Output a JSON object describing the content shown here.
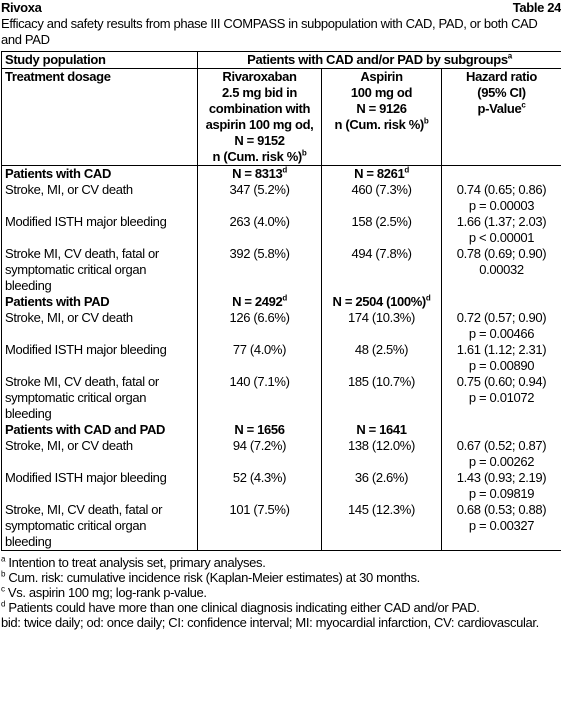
{
  "header": {
    "title": "Rivoxa",
    "label": "Table 24",
    "caption": "Efficacy and safety results from phase III COMPASS in subpopulation with CAD, PAD, or both CAD and PAD"
  },
  "table": {
    "col1_head": "Study population",
    "span_head": {
      "text": "Patients with CAD and/or PAD by subgroups",
      "sup": "a"
    },
    "col1_sub": "Treatment dosage",
    "riva_head": {
      "lines": [
        "Rivaroxaban",
        "2.5 mg bid in",
        "combination with",
        "aspirin 100 mg od,",
        "N = 9152",
        "n (Cum. risk %)"
      ],
      "sup": "b"
    },
    "asp_head": {
      "lines": [
        "Aspirin",
        "100 mg od",
        "N = 9126",
        "n (Cum. risk %)"
      ],
      "sup": "b"
    },
    "hr_head": {
      "lines": [
        "Hazard ratio",
        "(95% CI)",
        "p-Value"
      ],
      "sup": "c"
    },
    "groups": [
      {
        "title": "Patients with CAD",
        "n_riva": {
          "text": "N = 8313",
          "sup": "d"
        },
        "n_asp": {
          "text": "N = 8261",
          "sup": "d"
        },
        "rows": [
          {
            "label": "Stroke, MI, or CV death",
            "riva": "347 (5.2%)",
            "asp": "460 (7.3%)",
            "hr": "0.74 (0.65; 0.86)",
            "p": "p = 0.00003"
          },
          {
            "label": "Modified ISTH major bleeding",
            "riva": "263 (4.0%)",
            "asp": "158 (2.5%)",
            "hr": "1.66 (1.37; 2.03)",
            "p": "p < 0.00001"
          },
          {
            "label": "Stroke MI, CV death, fatal or symptomatic critical organ bleeding",
            "riva": "392 (5.8%)",
            "asp": "494 (7.8%)",
            "hr": "0.78 (0.69; 0.90)",
            "p": "0.00032"
          }
        ]
      },
      {
        "title": "Patients with PAD",
        "n_riva": {
          "text": "N = 2492",
          "sup": "d"
        },
        "n_asp": {
          "text": "N = 2504 (100%)",
          "sup": "d"
        },
        "rows": [
          {
            "label": "Stroke, MI, or CV death",
            "riva": "126 (6.6%)",
            "asp": "174 (10.3%)",
            "hr": "0.72 (0.57; 0.90)",
            "p": "p = 0.00466"
          },
          {
            "label": "Modified ISTH major bleeding",
            "riva": "77 (4.0%)",
            "asp": "48 (2.5%)",
            "hr": "1.61 (1.12; 2.31)",
            "p": "p = 0.00890"
          },
          {
            "label": "Stroke MI, CV death, fatal or symptomatic critical organ bleeding",
            "riva": "140 (7.1%)",
            "asp": "185 (10.7%)",
            "hr": "0.75 (0.60; 0.94)",
            "p": "p = 0.01072"
          }
        ]
      },
      {
        "title": "Patients with CAD and PAD",
        "n_riva": {
          "text": "N = 1656"
        },
        "n_asp": {
          "text": "N = 1641"
        },
        "rows": [
          {
            "label": "Stroke, MI, or CV death",
            "riva": "94 (7.2%)",
            "asp": "138 (12.0%)",
            "hr": "0.67 (0.52; 0.87)",
            "p": "p = 0.00262"
          },
          {
            "label": "Modified ISTH major bleeding",
            "riva": "52 (4.3%)",
            "asp": "36 (2.6%)",
            "hr": "1.43 (0.93; 2.19)",
            "p": "p = 0.09819"
          },
          {
            "label": "Stroke, MI, CV death, fatal or symptomatic critical organ bleeding",
            "riva": "101 (7.5%)",
            "asp": "145 (12.3%)",
            "hr": "0.68 (0.53; 0.88)",
            "p": "p = 0.00327"
          }
        ]
      }
    ]
  },
  "footnotes": [
    {
      "sup": "a",
      "text": "Intention to treat analysis set, primary analyses."
    },
    {
      "sup": "b",
      "text": "Cum. risk: cumulative incidence risk (Kaplan-Meier estimates) at 30 months."
    },
    {
      "sup": "c",
      "text": "Vs. aspirin 100 mg; log-rank p-value."
    },
    {
      "sup": "d",
      "text": "Patients could have more than one clinical diagnosis indicating either CAD and/or PAD."
    }
  ],
  "abbreviations": "bid: twice daily; od: once daily; CI: confidence interval; MI: myocardial infarction, CV: cardiovascular."
}
